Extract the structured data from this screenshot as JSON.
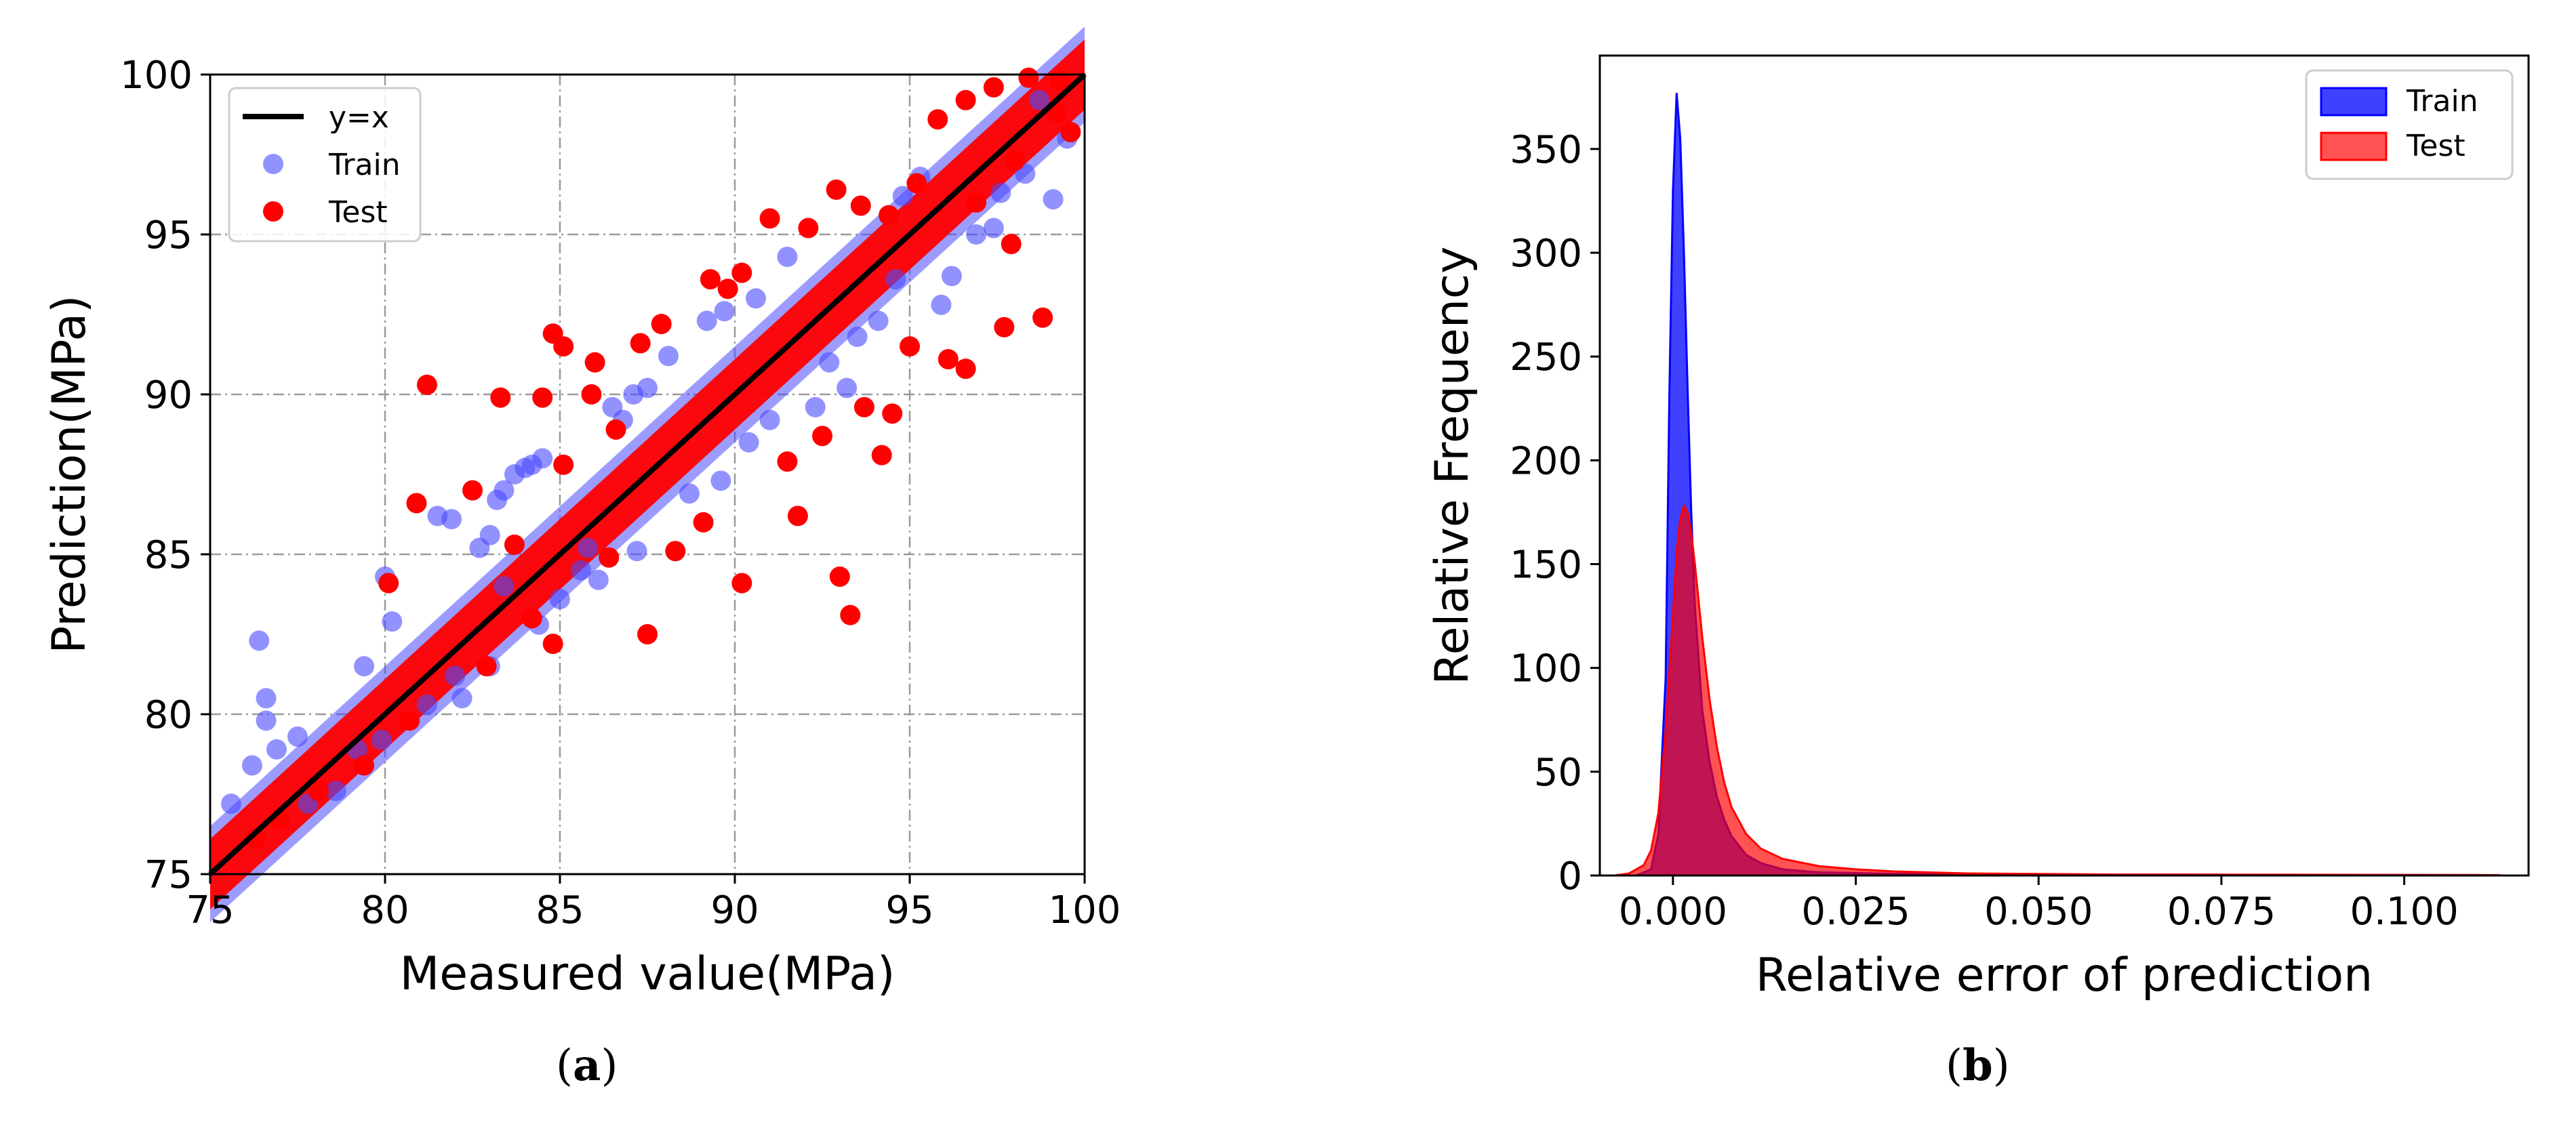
{
  "chart_data": [
    {
      "type": "scatter",
      "panel_label": "a",
      "xlabel": "Measured value(MPa)",
      "ylabel": "Prediction(MPa)",
      "xlim": [
        75,
        100
      ],
      "ylim": [
        75,
        100
      ],
      "xticks": [
        75,
        80,
        85,
        90,
        95,
        100
      ],
      "yticks": [
        75,
        80,
        85,
        90,
        95,
        100
      ],
      "grid": true,
      "legend_position": "top-left",
      "colors": {
        "line": "#000000",
        "train": "#4a4aff",
        "test": "#ff0000"
      },
      "reference_line": {
        "name": "y=x",
        "from": [
          75,
          75
        ],
        "to": [
          100,
          100
        ]
      },
      "series": [
        {
          "name": "Train",
          "points": [
            [
              76.4,
              82.3
            ],
            [
              76.6,
              80.5
            ],
            [
              76.6,
              79.8
            ],
            [
              76.2,
              78.4
            ],
            [
              75.6,
              77.2
            ],
            [
              76.9,
              78.9
            ],
            [
              77.5,
              79.3
            ],
            [
              80.0,
              84.3
            ],
            [
              80.2,
              82.9
            ],
            [
              79.4,
              81.5
            ],
            [
              81.5,
              86.2
            ],
            [
              81.9,
              86.1
            ],
            [
              82.7,
              85.2
            ],
            [
              83.0,
              85.6
            ],
            [
              83.2,
              86.7
            ],
            [
              83.4,
              87.0
            ],
            [
              83.7,
              87.5
            ],
            [
              84.0,
              87.7
            ],
            [
              84.2,
              87.8
            ],
            [
              84.5,
              88.0
            ],
            [
              83.4,
              84.0
            ],
            [
              83.0,
              81.5
            ],
            [
              81.2,
              80.3
            ],
            [
              79.2,
              78.9
            ],
            [
              82.2,
              80.5
            ],
            [
              84.4,
              82.8
            ],
            [
              86.8,
              89.2
            ],
            [
              87.1,
              90.0
            ],
            [
              87.5,
              90.2
            ],
            [
              86.5,
              89.6
            ],
            [
              87.2,
              85.1
            ],
            [
              86.1,
              84.2
            ],
            [
              85.6,
              84.5
            ],
            [
              88.1,
              91.2
            ],
            [
              89.2,
              92.3
            ],
            [
              89.7,
              92.6
            ],
            [
              90.6,
              93.0
            ],
            [
              90.4,
              88.5
            ],
            [
              91.0,
              89.2
            ],
            [
              92.3,
              89.6
            ],
            [
              91.5,
              94.3
            ],
            [
              93.2,
              90.2
            ],
            [
              93.5,
              91.8
            ],
            [
              94.1,
              92.3
            ],
            [
              94.8,
              96.2
            ],
            [
              95.3,
              96.8
            ],
            [
              96.2,
              93.7
            ],
            [
              96.9,
              95.0
            ],
            [
              97.6,
              96.3
            ],
            [
              98.3,
              96.9
            ],
            [
              99.1,
              96.1
            ],
            [
              99.5,
              98.0
            ],
            [
              98.7,
              99.2
            ],
            [
              97.4,
              95.2
            ],
            [
              95.9,
              92.8
            ],
            [
              94.6,
              93.6
            ],
            [
              92.7,
              91.0
            ],
            [
              89.6,
              87.3
            ],
            [
              88.7,
              86.9
            ],
            [
              85.0,
              83.6
            ],
            [
              77.8,
              77.2
            ],
            [
              78.6,
              77.6
            ],
            [
              79.9,
              79.2
            ],
            [
              82.0,
              81.2
            ],
            [
              85.8,
              85.2
            ]
          ]
        },
        {
          "name": "Test",
          "points": [
            [
              81.2,
              90.3
            ],
            [
              82.5,
              87.0
            ],
            [
              83.3,
              89.9
            ],
            [
              84.5,
              89.9
            ],
            [
              85.1,
              87.8
            ],
            [
              85.9,
              90.0
            ],
            [
              84.8,
              91.9
            ],
            [
              85.1,
              91.5
            ],
            [
              86.0,
              91.0
            ],
            [
              86.6,
              88.9
            ],
            [
              80.9,
              86.6
            ],
            [
              80.1,
              84.1
            ],
            [
              83.7,
              85.3
            ],
            [
              87.3,
              91.6
            ],
            [
              87.9,
              92.2
            ],
            [
              89.3,
              93.6
            ],
            [
              89.8,
              93.3
            ],
            [
              90.2,
              93.8
            ],
            [
              91.0,
              95.5
            ],
            [
              92.1,
              95.2
            ],
            [
              92.9,
              96.4
            ],
            [
              93.6,
              95.9
            ],
            [
              94.4,
              95.6
            ],
            [
              95.2,
              96.6
            ],
            [
              95.8,
              98.6
            ],
            [
              96.6,
              99.2
            ],
            [
              97.4,
              99.6
            ],
            [
              98.4,
              99.9
            ],
            [
              99.3,
              99.8
            ],
            [
              99.6,
              98.2
            ],
            [
              91.8,
              86.2
            ],
            [
              93.0,
              84.3
            ],
            [
              93.3,
              83.1
            ],
            [
              90.2,
              84.1
            ],
            [
              87.5,
              82.5
            ],
            [
              84.8,
              82.2
            ],
            [
              89.1,
              86.0
            ],
            [
              88.3,
              85.1
            ],
            [
              94.2,
              88.1
            ],
            [
              94.5,
              89.4
            ],
            [
              96.1,
              91.1
            ],
            [
              96.6,
              90.8
            ],
            [
              97.7,
              92.1
            ],
            [
              98.8,
              92.4
            ],
            [
              97.9,
              94.7
            ],
            [
              95.0,
              91.5
            ],
            [
              93.7,
              89.6
            ],
            [
              92.5,
              88.7
            ],
            [
              91.5,
              87.9
            ],
            [
              86.4,
              84.9
            ],
            [
              84.2,
              83.0
            ],
            [
              82.9,
              81.5
            ],
            [
              80.7,
              79.8
            ],
            [
              79.4,
              78.4
            ],
            [
              78.1,
              77.6
            ],
            [
              77.0,
              76.7
            ],
            [
              76.3,
              76.1
            ],
            [
              98.0,
              97.3
            ],
            [
              96.9,
              96.0
            ],
            [
              99.2,
              98.8
            ]
          ]
        }
      ]
    },
    {
      "type": "area",
      "panel_label": "b",
      "xlabel": "Relative error of prediction",
      "ylabel": "Relative Frequency",
      "xlim": [
        -0.01,
        0.117
      ],
      "ylim": [
        0,
        395
      ],
      "xticks": [
        "0.000",
        "0.025",
        "0.050",
        "0.075",
        "0.100"
      ],
      "xtick_values": [
        0.0,
        0.025,
        0.05,
        0.075,
        0.1
      ],
      "yticks": [
        0,
        50,
        100,
        150,
        200,
        250,
        300,
        350
      ],
      "grid": false,
      "legend_position": "top-right",
      "colors": {
        "train": "#0000ff",
        "test": "#ff0000",
        "overlap": "#b0103f"
      },
      "series": [
        {
          "name": "Train",
          "x": [
            -0.005,
            -0.003,
            -0.002,
            -0.001,
            -0.0005,
            0.0,
            0.0005,
            0.001,
            0.0015,
            0.002,
            0.0025,
            0.003,
            0.004,
            0.005,
            0.006,
            0.007,
            0.008,
            0.01,
            0.012,
            0.015,
            0.02,
            0.03,
            0.05,
            0.08,
            0.11
          ],
          "y": [
            0,
            3,
            20,
            95,
            230,
            330,
            377,
            355,
            300,
            235,
            175,
            130,
            80,
            55,
            38,
            27,
            19,
            10,
            6,
            3,
            1.5,
            0.8,
            0.5,
            0.3,
            0.2
          ]
        },
        {
          "name": "Test",
          "x": [
            -0.008,
            -0.006,
            -0.004,
            -0.003,
            -0.002,
            -0.001,
            0.0,
            0.0005,
            0.001,
            0.0015,
            0.002,
            0.0025,
            0.003,
            0.004,
            0.005,
            0.006,
            0.007,
            0.008,
            0.01,
            0.012,
            0.015,
            0.02,
            0.025,
            0.03,
            0.04,
            0.06,
            0.08,
            0.1,
            0.113
          ],
          "y": [
            0,
            1,
            5,
            12,
            30,
            70,
            125,
            155,
            172,
            178,
            175,
            165,
            150,
            115,
            85,
            62,
            45,
            33,
            20,
            13,
            8,
            4.5,
            3,
            2,
            1,
            0.5,
            0.4,
            0.3,
            0.2
          ]
        }
      ]
    }
  ]
}
